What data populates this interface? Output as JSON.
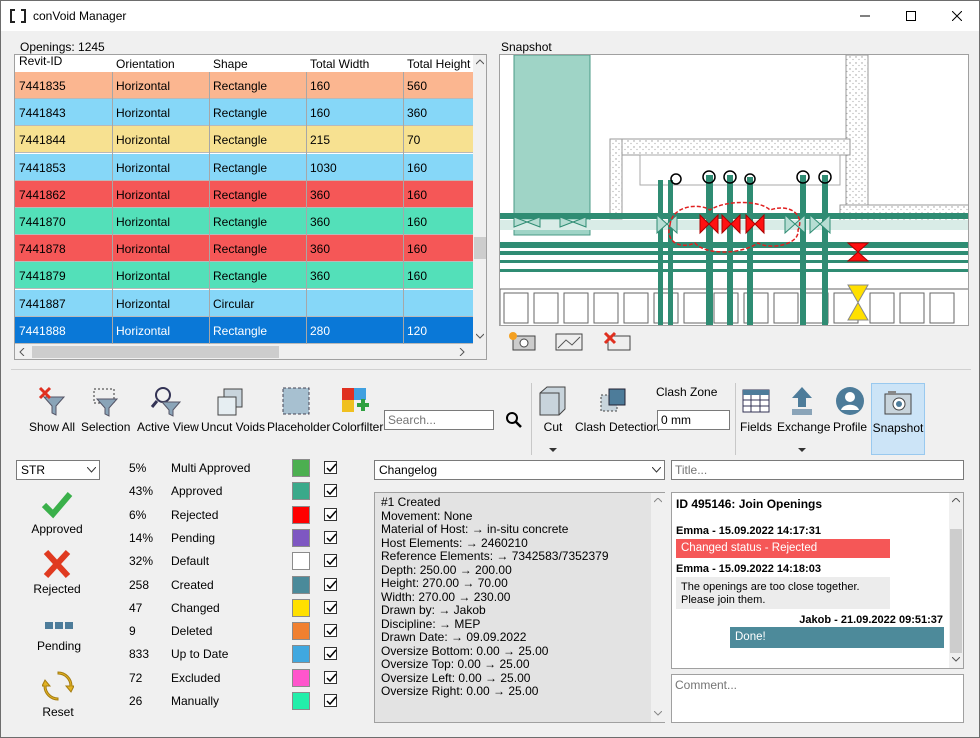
{
  "window": {
    "title": "conVoid Manager"
  },
  "grid": {
    "count_label": "Openings: 1245",
    "columns": [
      "Revit-ID",
      "Orientation",
      "Shape",
      "Total Width",
      "Total Height"
    ],
    "rows": [
      {
        "id": "7441835",
        "orientation": "Horizontal",
        "shape": "Rectangle",
        "width": "160",
        "height": "560",
        "color": "#fbb690"
      },
      {
        "id": "7441843",
        "orientation": "Horizontal",
        "shape": "Rectangle",
        "width": "160",
        "height": "360",
        "color": "#86d7f8"
      },
      {
        "id": "7441844",
        "orientation": "Horizontal",
        "shape": "Rectangle",
        "width": "215",
        "height": "70",
        "color": "#f7e191"
      },
      {
        "id": "7441853",
        "orientation": "Horizontal",
        "shape": "Rectangle",
        "width": "1030",
        "height": "160",
        "color": "#86d7f8"
      },
      {
        "id": "7441862",
        "orientation": "Horizontal",
        "shape": "Rectangle",
        "width": "360",
        "height": "160",
        "color": "#f55757"
      },
      {
        "id": "7441870",
        "orientation": "Horizontal",
        "shape": "Rectangle",
        "width": "360",
        "height": "160",
        "color": "#53e0b9"
      },
      {
        "id": "7441878",
        "orientation": "Horizontal",
        "shape": "Rectangle",
        "width": "360",
        "height": "160",
        "color": "#f55757"
      },
      {
        "id": "7441879",
        "orientation": "Horizontal",
        "shape": "Rectangle",
        "width": "360",
        "height": "160",
        "color": "#53e0b9"
      },
      {
        "id": "7441887",
        "orientation": "Horizontal",
        "shape": "Circular",
        "width": "",
        "height": "",
        "color": "#86d7f8"
      },
      {
        "id": "7441888",
        "orientation": "Horizontal",
        "shape": "Rectangle",
        "width": "280",
        "height": "120",
        "color": "#0a78d7"
      }
    ]
  },
  "snapshot": {
    "label": "Snapshot"
  },
  "toolbar": {
    "show_all": "Show All",
    "selection": "Selection",
    "active_view": "Active View",
    "uncut_voids": "Uncut Voids",
    "placeholder": "Placeholder",
    "colorfilter": "Colorfilter",
    "search_placeholder": "Search...",
    "cut": "Cut",
    "clash_detection": "Clash Detection",
    "clash_zone_label": "Clash Zone",
    "clash_zone_value": "0 mm",
    "fields": "Fields",
    "exchange": "Exchange",
    "profile": "Profile",
    "snapshot": "Snapshot"
  },
  "discipline": {
    "selected": "STR"
  },
  "status_buttons": {
    "approved": "Approved",
    "rejected": "Rejected",
    "pending": "Pending",
    "reset": "Reset"
  },
  "stats": [
    {
      "value": "5%",
      "label": "Multi Approved",
      "color": "#4caf50"
    },
    {
      "value": "43%",
      "label": "Approved",
      "color": "#3aa98a"
    },
    {
      "value": "6%",
      "label": "Rejected",
      "color": "#ff0000"
    },
    {
      "value": "14%",
      "label": "Pending",
      "color": "#7e57c2"
    },
    {
      "value": "32%",
      "label": "Default",
      "color": "#ffffff"
    },
    {
      "value": "258",
      "label": "Created",
      "color": "#4a8a9a"
    },
    {
      "value": "47",
      "label": "Changed",
      "color": "#ffe000"
    },
    {
      "value": "9",
      "label": "Deleted",
      "color": "#f08030"
    },
    {
      "value": "833",
      "label": "Up to Date",
      "color": "#40a8e0"
    },
    {
      "value": "72",
      "label": "Excluded",
      "color": "#ff55cc"
    },
    {
      "value": "26",
      "label": "Manually",
      "color": "#22eeaa"
    }
  ],
  "changelog": {
    "selected": "Changelog",
    "lines": [
      "#1 Created",
      "Movement: None",
      "Material of Host: → in-situ concrete",
      "Host Elements: → 2460210",
      "Reference Elements: → 7342583/7352379",
      "Depth: 250.00 → 200.00",
      "Height: 270.00 → 70.00",
      "Width: 270.00 → 230.00",
      "Drawn by: → Jakob",
      "Discipline: → MEP",
      "Drawn Date: → 09.09.2022",
      "Oversize Bottom: 0.00 → 25.00",
      "Oversize Top: 0.00 → 25.00",
      "Oversize Left: 0.00 → 25.00",
      "Oversize Right: 0.00 → 25.00"
    ]
  },
  "chat": {
    "title_placeholder": "Title...",
    "heading": "ID 495146: Join Openings",
    "m1_author": "Emma - 15.09.2022 14:17:31",
    "m1_text": "Changed status - Rejected",
    "m2_author": "Emma - 15.09.2022 14:18:03",
    "m2_line1": "The openings are too close together.",
    "m2_line2": "Please join them.",
    "m3_author": "Jakob - 21.09.2022 09:51:37",
    "m3_text": "Done!",
    "comment_placeholder": "Comment..."
  }
}
